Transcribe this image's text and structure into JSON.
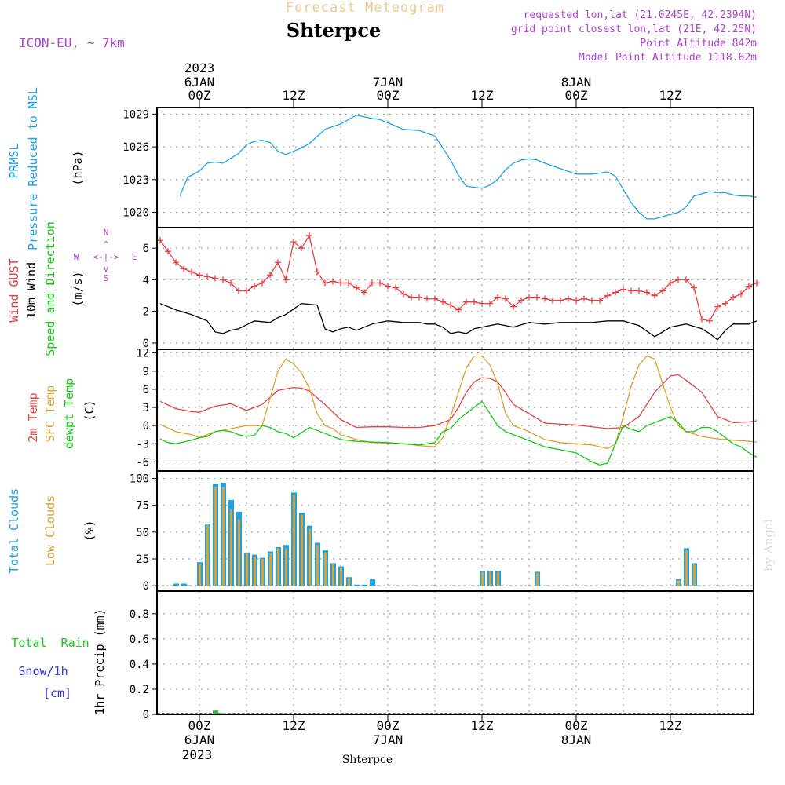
{
  "header": {
    "product_title": "Forecast Meteogram",
    "model": "ICON-EU,  ~ 7km",
    "location": "Shterpce",
    "requested": "requested lon,lat (21.0245E, 42.2394N)",
    "grid_point": "grid point closest lon,lat (21E, 42.25N)",
    "point_altitude": "Point Altitude 842m",
    "model_altitude": "Model Point Altitude 1118.62m",
    "credit": "by Angel",
    "footer_location": "Shterpce"
  },
  "time_axis": {
    "year": "2023",
    "labels": [
      {
        "h": 0,
        "top": "6JAN",
        "mid": "00Z"
      },
      {
        "h": 12,
        "mid": "12Z"
      },
      {
        "h": 24,
        "top": "7JAN",
        "mid": "00Z"
      },
      {
        "h": 36,
        "mid": "12Z"
      },
      {
        "h": 48,
        "top": "8JAN",
        "mid": "00Z"
      },
      {
        "h": 60,
        "mid": "12Z"
      }
    ]
  },
  "colors": {
    "pressure": "#1aa3e8",
    "gust": "#e84040",
    "wind": "#000000",
    "temp2m": "#e84040",
    "sfc": "#e0a030",
    "dewpt": "#10cc10",
    "total_clouds": "#1aa3e8",
    "low_clouds": "#e0a030",
    "rain": "#10cc10",
    "snow": "#3030e0",
    "title": "#f0c890",
    "meta": "#b040d0",
    "grid": "#909090"
  },
  "chart_data": [
    {
      "type": "line",
      "id": "pressure",
      "ylabels": [
        "PRMSL",
        "Pressure Reduced to MSL",
        "(hPa)"
      ],
      "ylim": [
        1018.6,
        1029.6
      ],
      "yticks": [
        1020,
        1023,
        1026,
        1029
      ],
      "series": [
        {
          "name": "PRMSL",
          "x": [
            -2.5,
            -1.5,
            0,
            1,
            2,
            3,
            5,
            6,
            7,
            8,
            9,
            10,
            11,
            13,
            14,
            16,
            18,
            20,
            22,
            23,
            24,
            26,
            28,
            30,
            32,
            33,
            34,
            36,
            37,
            38,
            39,
            40,
            41,
            42,
            43,
            44,
            46,
            48,
            50,
            52,
            53,
            54,
            55,
            56,
            57,
            58,
            59,
            60,
            61,
            62,
            63,
            64,
            65,
            66,
            67,
            68,
            69,
            70,
            71
          ],
          "values": [
            1021.5,
            1023.2,
            1023.8,
            1024.5,
            1024.6,
            1024.5,
            1025.4,
            1026.2,
            1026.5,
            1026.6,
            1026.4,
            1025.6,
            1025.3,
            1025.9,
            1026.3,
            1027.6,
            1028.1,
            1028.9,
            1028.6,
            1028.5,
            1028.2,
            1027.6,
            1027.5,
            1027.0,
            1024.8,
            1023.4,
            1022.4,
            1022.2,
            1022.5,
            1023.0,
            1023.9,
            1024.5,
            1024.8,
            1024.9,
            1024.8,
            1024.5,
            1024.0,
            1023.5,
            1023.5,
            1023.7,
            1023.3,
            1022.1,
            1020.9,
            1020.0,
            1019.4,
            1019.4,
            1019.6,
            1019.8,
            1020.0,
            1020.5,
            1021.5,
            1021.7,
            1021.9,
            1021.8,
            1021.8,
            1021.6,
            1021.5,
            1021.5,
            1021.4
          ]
        }
      ]
    },
    {
      "type": "line",
      "id": "wind",
      "ylabels": [
        "Wind GUST",
        "10m Wind",
        "Speed and Direction",
        "(m/s)"
      ],
      "compass": {
        "north": "N",
        "west": "W",
        "east": "E",
        "south": "S"
      },
      "ylim": [
        -0.4,
        7.3
      ],
      "yticks": [
        0,
        2,
        4,
        6
      ],
      "gust": {
        "x": [
          -5,
          -4,
          -3,
          -2,
          -1,
          0,
          1,
          2,
          3,
          4,
          5,
          6,
          7,
          8,
          9,
          10,
          11,
          12,
          13,
          14,
          15,
          16,
          17,
          18,
          19,
          20,
          21,
          22,
          23,
          24,
          25,
          26,
          27,
          28,
          29,
          30,
          31,
          32,
          33,
          34,
          35,
          36,
          37,
          38,
          39,
          40,
          41,
          42,
          43,
          44,
          45,
          46,
          47,
          48,
          49,
          50,
          51,
          52,
          53,
          54,
          55,
          56,
          57,
          58,
          59,
          60,
          61,
          62,
          63,
          64,
          65,
          66,
          67,
          68,
          69,
          70,
          71
        ],
        "values": [
          6.5,
          5.8,
          5.1,
          4.7,
          4.5,
          4.3,
          4.2,
          4.1,
          4.0,
          3.8,
          3.3,
          3.3,
          3.6,
          3.8,
          4.3,
          5.1,
          4.0,
          6.4,
          6.0,
          6.8,
          4.5,
          3.8,
          3.9,
          3.8,
          3.8,
          3.5,
          3.2,
          3.8,
          3.8,
          3.6,
          3.5,
          3.1,
          2.9,
          2.9,
          2.8,
          2.8,
          2.6,
          2.4,
          2.1,
          2.6,
          2.6,
          2.5,
          2.5,
          2.9,
          2.8,
          2.3,
          2.7,
          2.9,
          2.9,
          2.8,
          2.7,
          2.7,
          2.8,
          2.7,
          2.8,
          2.7,
          2.7,
          3.0,
          3.2,
          3.4,
          3.3,
          3.3,
          3.2,
          3.0,
          3.3,
          3.8,
          4.0,
          4.0,
          3.5,
          1.5,
          1.4,
          2.3,
          2.5,
          2.9,
          3.1,
          3.6,
          3.8
        ]
      },
      "speed": {
        "x": [
          -5,
          -3,
          -1,
          1,
          2,
          3,
          4,
          5,
          7,
          9,
          10,
          11,
          13,
          15,
          16,
          17,
          18,
          19,
          20,
          22,
          24,
          26,
          28,
          29,
          30,
          31,
          32,
          33,
          34,
          35,
          36,
          37,
          38,
          40,
          42,
          44,
          46,
          48,
          50,
          52,
          54,
          56,
          58,
          60,
          62,
          64,
          65,
          66,
          67,
          68,
          70,
          71
        ],
        "values": [
          2.5,
          2.1,
          1.8,
          1.4,
          0.7,
          0.6,
          0.8,
          0.9,
          1.4,
          1.3,
          1.6,
          1.8,
          2.5,
          2.4,
          0.9,
          0.7,
          0.9,
          1.0,
          0.8,
          1.2,
          1.4,
          1.3,
          1.3,
          1.2,
          1.2,
          1.0,
          0.6,
          0.7,
          0.6,
          0.9,
          1.0,
          1.1,
          1.2,
          1.0,
          1.3,
          1.2,
          1.3,
          1.3,
          1.3,
          1.4,
          1.4,
          1.1,
          0.4,
          1.0,
          1.2,
          0.9,
          0.6,
          0.2,
          0.8,
          1.2,
          1.2,
          1.4
        ]
      }
    },
    {
      "type": "line",
      "id": "temperature",
      "ylabels": [
        "2m Temp",
        "SFC Temp",
        "dewpt Temp",
        "(C)"
      ],
      "ylim": [
        -7.5,
        12.6
      ],
      "yticks": [
        -6,
        -3,
        0,
        3,
        6,
        9,
        12
      ],
      "series": [
        {
          "name": "2m Temp",
          "x": [
            -5,
            -3,
            -1,
            0,
            2,
            4,
            6,
            8,
            10,
            12,
            13,
            14,
            16,
            18,
            20,
            22,
            24,
            26,
            28,
            30,
            32,
            33,
            34,
            35,
            36,
            37,
            38,
            39,
            40,
            44,
            48,
            52,
            54,
            56,
            58,
            60,
            61,
            62,
            64,
            66,
            68,
            70,
            71
          ],
          "values": [
            4.0,
            2.8,
            2.3,
            2.2,
            3.2,
            3.6,
            2.5,
            3.5,
            5.8,
            6.3,
            6.2,
            5.7,
            3.5,
            1.0,
            -0.3,
            -0.2,
            -0.2,
            -0.3,
            -0.3,
            0.0,
            1.0,
            3.0,
            5.5,
            7.2,
            7.9,
            7.8,
            7.2,
            5.5,
            3.5,
            0.4,
            0.1,
            -0.5,
            -0.3,
            1.5,
            5.5,
            8.2,
            8.4,
            7.5,
            5.5,
            1.5,
            0.5,
            0.6,
            0.8
          ]
        },
        {
          "name": "SFC Temp",
          "x": [
            -5,
            -3,
            -1,
            0,
            2,
            3,
            4,
            6,
            8,
            9,
            10,
            11,
            12,
            13,
            14,
            15,
            16,
            17,
            18,
            20,
            22,
            24,
            26,
            28,
            30,
            31,
            32,
            33,
            34,
            35,
            36,
            37,
            38,
            39,
            40,
            42,
            44,
            46,
            48,
            50,
            52,
            53,
            54,
            55,
            56,
            57,
            58,
            59,
            60,
            61,
            62,
            63,
            64,
            66,
            68,
            70,
            71
          ],
          "values": [
            0.2,
            -1.0,
            -1.5,
            -2.0,
            -1.0,
            -0.8,
            -0.5,
            0.0,
            0.0,
            4.5,
            9.0,
            11.0,
            10.2,
            8.7,
            6.2,
            2.0,
            0.0,
            -0.5,
            -1.5,
            -2.3,
            -2.8,
            -2.9,
            -3.0,
            -3.3,
            -3.5,
            -2.0,
            1.5,
            5.5,
            9.5,
            11.5,
            11.5,
            10.0,
            7.0,
            2.0,
            0.0,
            -1.0,
            -2.3,
            -2.8,
            -3.0,
            -3.2,
            -3.8,
            -3.0,
            1.5,
            6.5,
            10.0,
            11.5,
            11.0,
            7.0,
            3.0,
            0.0,
            -1.0,
            -1.4,
            -1.8,
            -2.2,
            -2.4,
            -2.6,
            -2.7
          ]
        },
        {
          "name": "dewpt Temp",
          "x": [
            -5,
            -4,
            -3,
            -2,
            -1,
            0,
            1,
            2,
            3,
            4,
            5,
            6,
            7,
            8,
            9,
            10,
            11,
            12,
            13,
            14,
            15,
            16,
            17,
            18,
            20,
            22,
            24,
            26,
            28,
            30,
            31,
            32,
            33,
            34,
            35,
            36,
            37,
            38,
            39,
            40,
            42,
            44,
            46,
            48,
            50,
            51,
            52,
            53,
            54,
            55,
            56,
            57,
            58,
            59,
            60,
            61,
            62,
            63,
            64,
            65,
            66,
            67,
            68,
            69,
            70,
            71
          ],
          "values": [
            -2.2,
            -2.8,
            -3.0,
            -2.7,
            -2.4,
            -2.0,
            -1.8,
            -1.0,
            -0.8,
            -1.0,
            -1.5,
            -1.8,
            -1.6,
            0.0,
            -0.3,
            -1.0,
            -1.3,
            -2.0,
            -1.2,
            -0.3,
            -0.8,
            -1.3,
            -1.8,
            -2.3,
            -2.6,
            -2.7,
            -2.8,
            -3.0,
            -3.2,
            -2.8,
            -1.0,
            -0.5,
            1.0,
            2.0,
            3.0,
            4.0,
            2.0,
            0.0,
            -1.0,
            -1.5,
            -2.5,
            -3.5,
            -4.0,
            -4.5,
            -6.0,
            -6.5,
            -6.2,
            -3.0,
            0.0,
            -0.6,
            -1.0,
            0.0,
            0.5,
            1.0,
            1.5,
            0.5,
            -1.0,
            -1.0,
            -0.3,
            -0.3,
            -1.0,
            -2.0,
            -3.0,
            -3.5,
            -4.5,
            -5.2
          ]
        }
      ]
    },
    {
      "type": "bar",
      "id": "clouds",
      "ylabels": [
        "Total Clouds",
        "Low Clouds",
        "(%)"
      ],
      "ylim": [
        -5,
        107
      ],
      "yticks": [
        0,
        25,
        50,
        75,
        100
      ],
      "x": [
        -3,
        -2,
        0,
        1,
        2,
        3,
        4,
        5,
        6,
        7,
        8,
        9,
        10,
        11,
        12,
        13,
        14,
        15,
        16,
        17,
        18,
        19,
        20,
        21,
        22,
        36,
        37,
        38,
        43,
        61,
        62,
        63
      ],
      "series": [
        {
          "name": "Total Clouds",
          "values": [
            2,
            2,
            22,
            58,
            95,
            96,
            80,
            69,
            31,
            29,
            26,
            32,
            36,
            38,
            87,
            68,
            56,
            40,
            33,
            21,
            18,
            8,
            1,
            1,
            6,
            14,
            14,
            14,
            13,
            6,
            35,
            21
          ]
        },
        {
          "name": "Low Clouds",
          "values": [
            0,
            0,
            20,
            57,
            92,
            92,
            71,
            62,
            30,
            27,
            25,
            30,
            35,
            35,
            85,
            66,
            53,
            38,
            31,
            20,
            17,
            7,
            0,
            0,
            0,
            13,
            13,
            13,
            12,
            5,
            33,
            20
          ]
        }
      ]
    },
    {
      "type": "bar",
      "id": "precip",
      "ylabels": [
        "Total  Rain",
        "Snow/1h",
        "[cm]",
        "1hr Precip (mm)"
      ],
      "ylim": [
        0,
        0.98
      ],
      "yticks": [
        0,
        0.2,
        0.4,
        0.6,
        0.8
      ],
      "ytick_labels": [
        "0",
        "0.2",
        "0.4",
        "0.6",
        "0.8"
      ],
      "x": [
        2,
        3
      ],
      "series": [
        {
          "name": "Total Rain",
          "values": [
            0.03,
            0.01
          ]
        }
      ]
    }
  ]
}
